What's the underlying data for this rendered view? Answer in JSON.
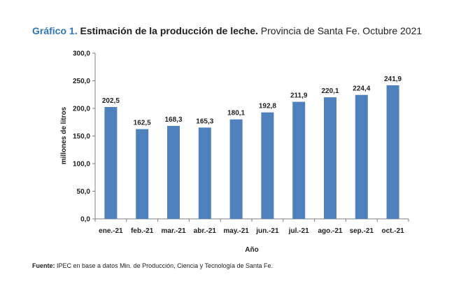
{
  "header": {
    "label": "Gráfico 1.",
    "title_bold": "Estimación de la producción de leche.",
    "title_normal": "Provincia de Santa Fe. Octubre 2021"
  },
  "footer": {
    "source_label": "Fuente:",
    "source_text": "IPEC en base a datos Min. de Producción, Ciencia y Tecnología de Santa Fe."
  },
  "colors": {
    "bar": "#4f81bd",
    "axis": "#7f7f7f",
    "title_label": "#2e75b6"
  },
  "chart_data": {
    "type": "bar",
    "title": "Estimación de la producción de leche. Provincia de Santa Fe. Octubre 2021",
    "xlabel": "Año",
    "ylabel": "millones de litros",
    "categories": [
      "ene.-21",
      "feb.-21",
      "mar.-21",
      "abr.-21",
      "may.-21",
      "jun.-21",
      "jul.-21",
      "ago.-21",
      "sep.-21",
      "oct.-21"
    ],
    "values": [
      202.5,
      162.5,
      168.3,
      165.3,
      180.1,
      192.8,
      211.9,
      220.1,
      224.4,
      241.9
    ],
    "value_labels": [
      "202,5",
      "162,5",
      "168,3",
      "165,3",
      "180,1",
      "192,8",
      "211,9",
      "220,1",
      "224,4",
      "241,9"
    ],
    "yticks": [
      0,
      50,
      100,
      150,
      200,
      250,
      300
    ],
    "ytick_labels": [
      "0,0",
      "50,0",
      "100,0",
      "150,0",
      "200,0",
      "250,0",
      "300,0"
    ],
    "ylim": [
      0,
      300
    ],
    "grid": false,
    "legend": "none"
  }
}
